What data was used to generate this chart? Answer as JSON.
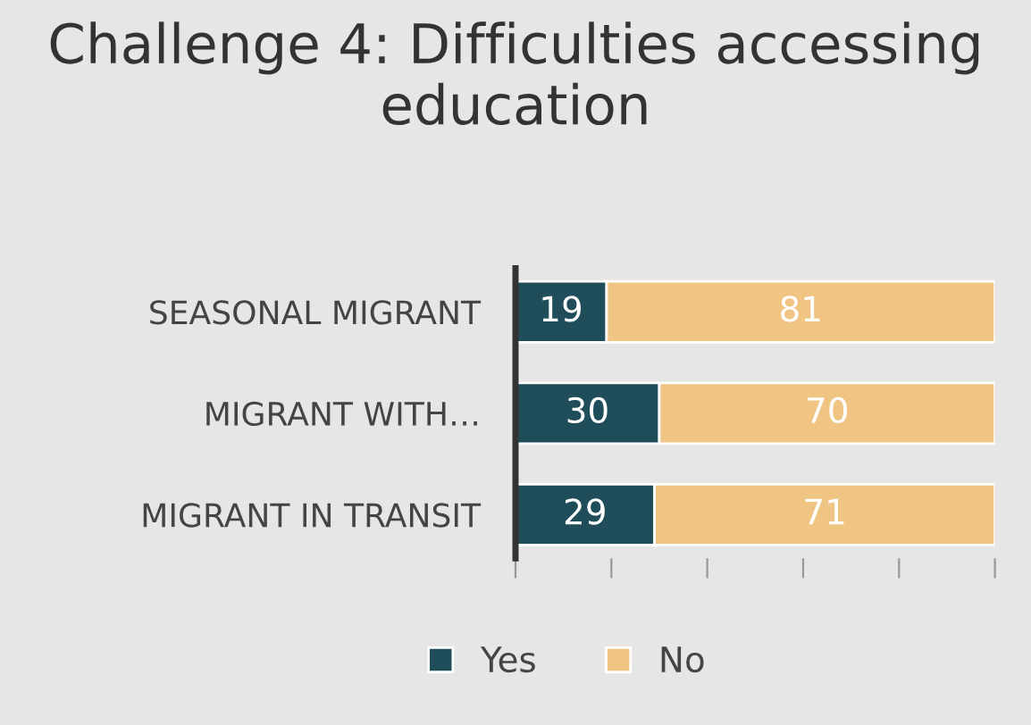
{
  "chart_data": {
    "type": "bar",
    "orientation": "horizontal",
    "stacked": true,
    "title": "Challenge 4: Difficulties accessing education",
    "categories": [
      "SEASONAL MIGRANT",
      "MIGRANT WITH…",
      "MIGRANT IN TRANSIT"
    ],
    "series": [
      {
        "name": "Yes",
        "color": "#1f4e5a",
        "values": [
          19,
          30,
          29
        ]
      },
      {
        "name": "No",
        "color": "#f0c584",
        "values": [
          81,
          70,
          71
        ]
      }
    ],
    "xlim": [
      0,
      100
    ],
    "xticks": [
      {
        "value": 0,
        "label": null
      },
      {
        "value": 20,
        "label": null
      },
      {
        "value": 40,
        "label": null
      },
      {
        "value": 60,
        "label": null
      },
      {
        "value": 80,
        "label": null
      },
      {
        "value": 100,
        "label": null
      }
    ],
    "tick_labels": "y",
    "data_labels": true,
    "legend": "bottom",
    "grid": false
  }
}
